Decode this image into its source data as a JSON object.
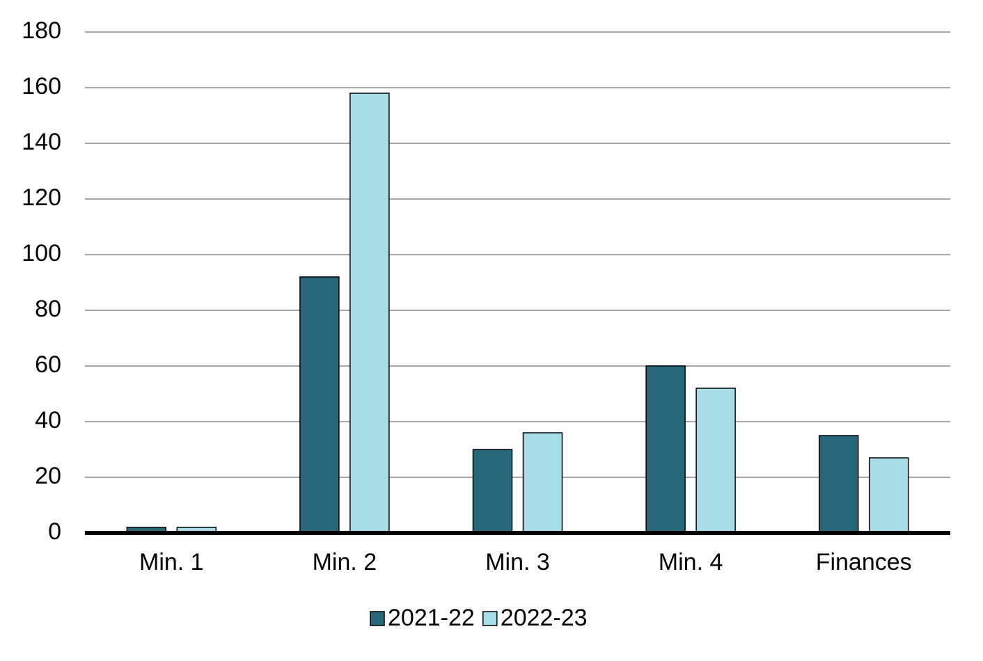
{
  "chart_data": {
    "type": "bar",
    "categories": [
      "Min. 1",
      "Min. 2",
      "Min. 3",
      "Min. 4",
      "Finances"
    ],
    "series": [
      {
        "name": "2021-22",
        "color": "#28677a",
        "values": [
          2,
          92,
          30,
          60,
          35
        ]
      },
      {
        "name": "2022-23",
        "color": "#a8dde8",
        "values": [
          2,
          158,
          36,
          52,
          27
        ]
      }
    ],
    "ylim": [
      0,
      180
    ],
    "yticks": [
      0,
      20,
      40,
      60,
      80,
      100,
      120,
      140,
      160,
      180
    ],
    "grid": true,
    "legend": "bottom"
  }
}
